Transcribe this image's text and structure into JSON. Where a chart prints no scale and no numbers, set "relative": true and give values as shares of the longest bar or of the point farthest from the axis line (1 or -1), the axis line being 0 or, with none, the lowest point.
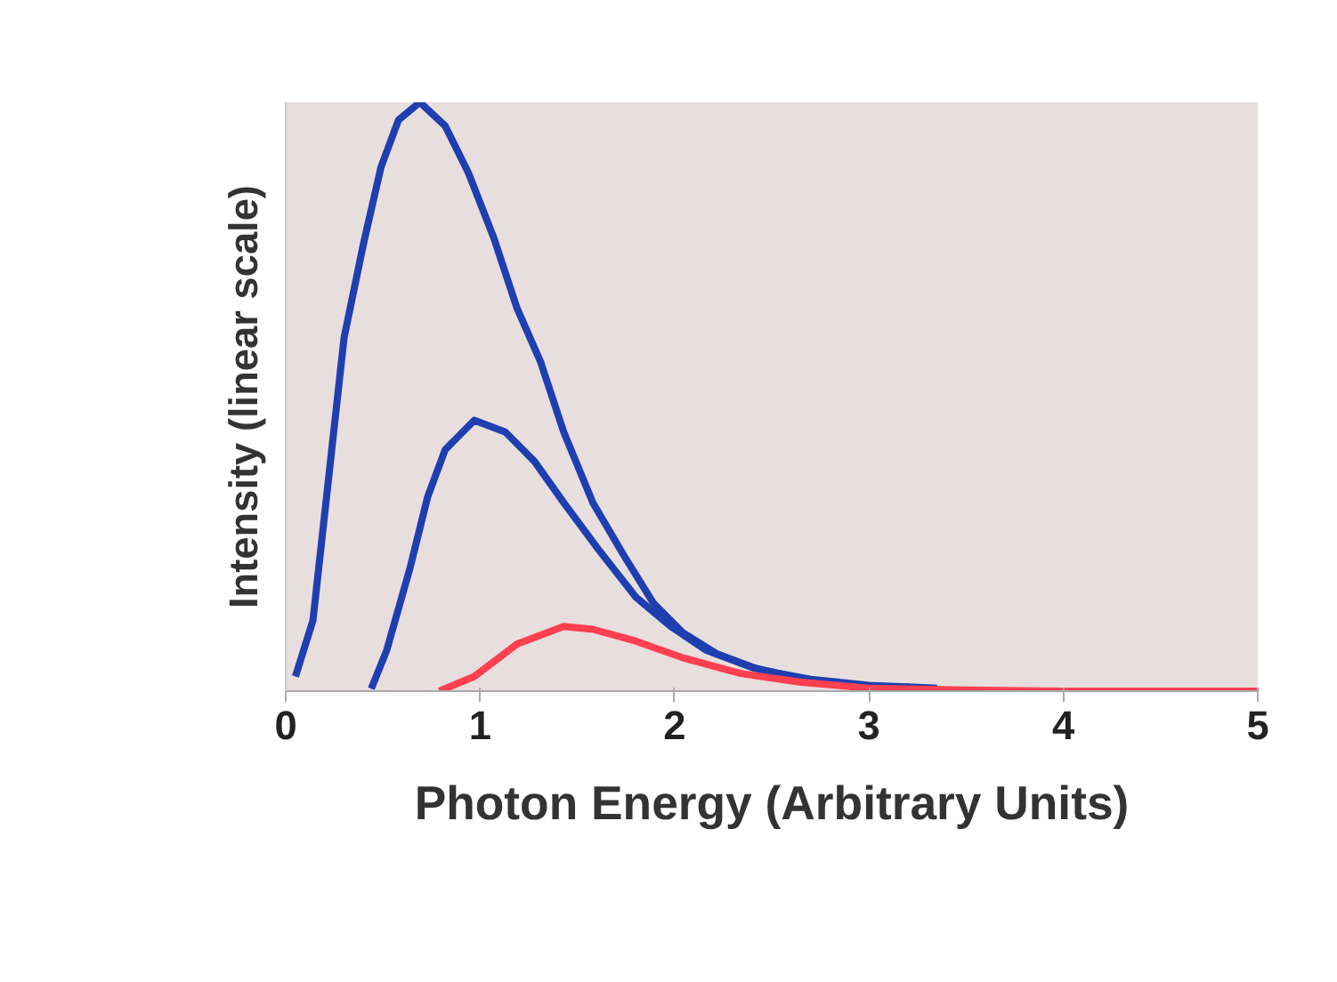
{
  "chart_data": {
    "type": "line",
    "relative": true,
    "xlabel": "Photon Energy (Arbitrary Units)",
    "ylabel": "Intensity (linear scale)",
    "xlim": [
      0,
      5
    ],
    "xticks": [
      0,
      1,
      2,
      3,
      4,
      5
    ],
    "marker": "none",
    "line_style": "solid",
    "series": [
      {
        "color": "#1f3fb0",
        "x": [
          0.05,
          0.14,
          0.21,
          0.3,
          0.4,
          0.49,
          0.58,
          0.69,
          0.82,
          0.94,
          1.07,
          1.19,
          1.31,
          1.43,
          1.58,
          1.74,
          1.89,
          2.04,
          2.22,
          2.44,
          2.7,
          3.0,
          3.35
        ],
        "values": [
          0.025,
          0.12,
          0.33,
          0.6,
          0.76,
          0.89,
          0.97,
          1.0,
          0.96,
          0.88,
          0.77,
          0.65,
          0.56,
          0.44,
          0.32,
          0.23,
          0.15,
          0.1,
          0.063,
          0.036,
          0.02,
          0.01,
          0.005
        ]
      },
      {
        "color": "#1f3fb0",
        "x": [
          0.44,
          0.52,
          0.64,
          0.73,
          0.82,
          0.97,
          1.13,
          1.28,
          1.43,
          1.61,
          1.8,
          1.98,
          2.16,
          2.4,
          2.7,
          3.0,
          3.35
        ],
        "values": [
          0.004,
          0.07,
          0.21,
          0.33,
          0.41,
          0.46,
          0.44,
          0.39,
          0.32,
          0.24,
          0.16,
          0.11,
          0.07,
          0.04,
          0.018,
          0.008,
          0.004
        ]
      },
      {
        "color": "#ff4050",
        "x": [
          0.79,
          0.97,
          1.19,
          1.43,
          1.58,
          1.8,
          2.04,
          2.34,
          2.65,
          3.0,
          3.5,
          4.0,
          5.0
        ],
        "values": [
          0,
          0.025,
          0.08,
          0.11,
          0.105,
          0.085,
          0.057,
          0.03,
          0.015,
          0.005,
          0.002,
          0,
          0
        ]
      }
    ]
  }
}
